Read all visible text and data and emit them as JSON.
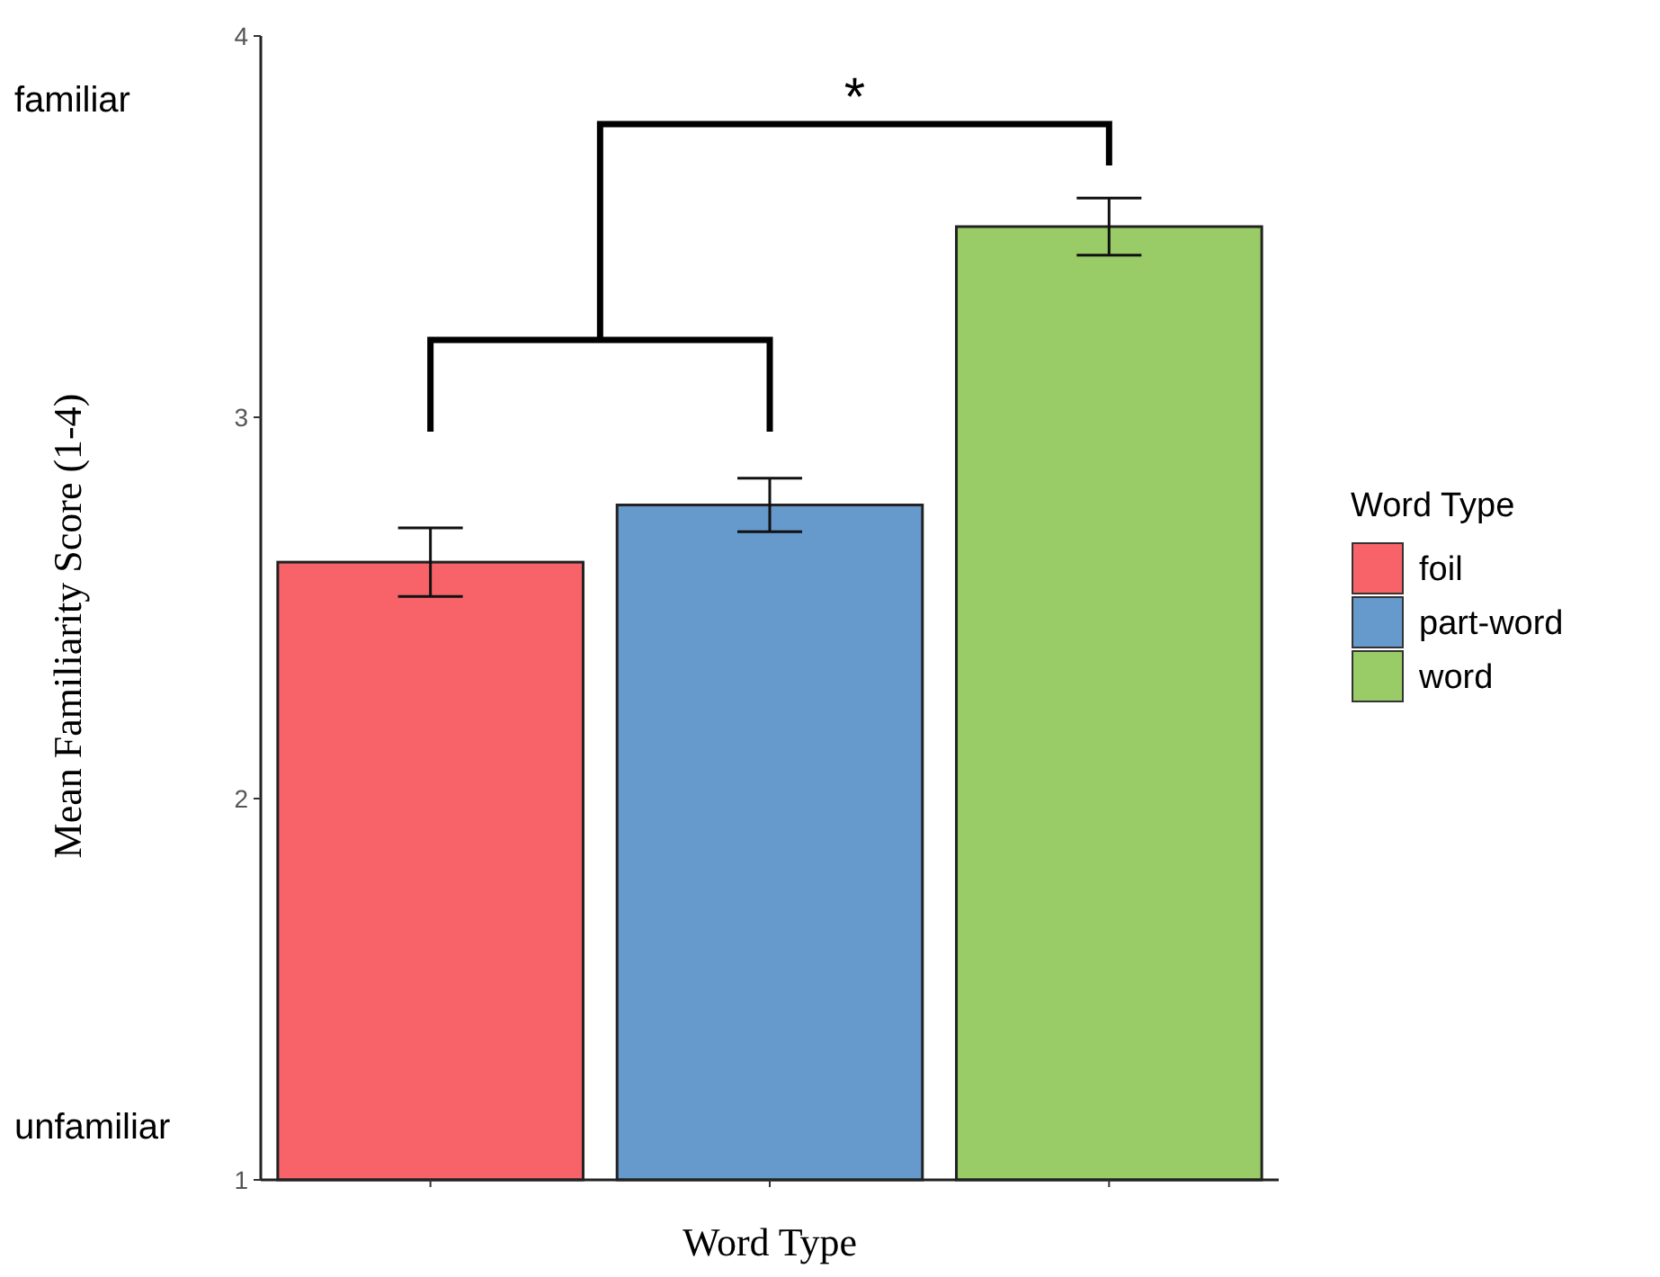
{
  "chart_data": {
    "type": "bar",
    "xlabel": "Word Type",
    "ylabel": "Mean Familiarity Score (1-4)",
    "legend_title": "Word Type",
    "categories": [
      null,
      null,
      null
    ],
    "series": [
      {
        "name": "foil",
        "color": "#f8636a",
        "values": [
          2.62,
          null,
          null
        ],
        "errors": [
          0.09,
          null,
          null
        ]
      },
      {
        "name": "part-word",
        "color": "#6699cc",
        "values": [
          null,
          2.77,
          null
        ],
        "errors": [
          null,
          0.07,
          null
        ]
      },
      {
        "name": "word",
        "color": "#99cc66",
        "values": [
          null,
          null,
          3.5
        ],
        "errors": [
          null,
          null,
          0.075
        ]
      }
    ],
    "ylim": [
      1,
      4
    ],
    "yticks": [
      1,
      2,
      3,
      4
    ],
    "grid": false,
    "legend": "right",
    "annotations": [
      "familiar",
      "unfamiliar",
      "*"
    ]
  }
}
